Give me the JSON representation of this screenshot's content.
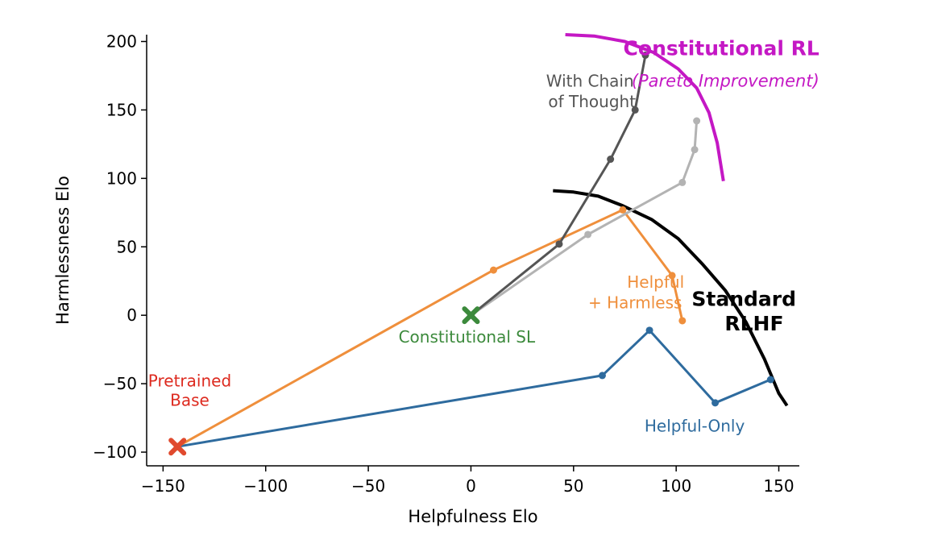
{
  "chart_data": {
    "type": "line",
    "title": "",
    "xlabel": "Helpfulness Elo",
    "ylabel": "Harmlessness Elo",
    "xlim": [
      -158,
      160
    ],
    "ylim": [
      -110,
      205
    ],
    "xticks": [
      -150,
      -100,
      -50,
      0,
      50,
      100,
      150
    ],
    "yticks": [
      -100,
      -50,
      0,
      50,
      100,
      150,
      200
    ],
    "xtick_labels": [
      "−150",
      "−100",
      "−50",
      "0",
      "50",
      "100",
      "150"
    ],
    "ytick_labels": [
      "−100",
      "−50",
      "0",
      "50",
      "100",
      "150",
      "200"
    ],
    "grid": false,
    "series": [
      {
        "name": "Helpful-Only",
        "color": "#2e6b9e",
        "points": [
          [
            -143,
            -96
          ],
          [
            64,
            -44
          ],
          [
            87,
            -11
          ],
          [
            119,
            -64
          ],
          [
            146,
            -47
          ]
        ]
      },
      {
        "name": "Helpful + Harmless",
        "color": "#ef8f3c",
        "points": [
          [
            -143,
            -96
          ],
          [
            11,
            33
          ],
          [
            74,
            77
          ],
          [
            98,
            29
          ],
          [
            103,
            -4
          ]
        ]
      },
      {
        "name": "",
        "color": "#b3b3b3",
        "points": [
          [
            0,
            0
          ],
          [
            57,
            59
          ],
          [
            103,
            97
          ],
          [
            109,
            121
          ],
          [
            110,
            142
          ]
        ]
      },
      {
        "name": "With Chain of Thought",
        "color": "#555555",
        "points": [
          [
            0,
            0
          ],
          [
            43,
            52
          ],
          [
            68,
            114
          ],
          [
            80,
            150
          ],
          [
            85,
            190
          ]
        ]
      }
    ],
    "markers": [
      {
        "name": "Pretrained Base",
        "x": -143,
        "y": -96,
        "shape": "x",
        "color": "#e04a2e"
      },
      {
        "name": "Constitutional SL",
        "x": 0,
        "y": 0,
        "shape": "x",
        "color": "#3c8a3c"
      }
    ],
    "curves": [
      {
        "name": "Standard RLHF",
        "color": "#000000",
        "points": [
          [
            40,
            91
          ],
          [
            50,
            90
          ],
          [
            62,
            87
          ],
          [
            74,
            80
          ],
          [
            88,
            70
          ],
          [
            101,
            56
          ],
          [
            113,
            37
          ],
          [
            124,
            18
          ],
          [
            134,
            -5
          ],
          [
            143,
            -32
          ],
          [
            150,
            -57
          ],
          [
            154,
            -66
          ]
        ]
      },
      {
        "name": "Constitutional RL",
        "color": "#c418c4",
        "points": [
          [
            46,
            205
          ],
          [
            60,
            204
          ],
          [
            75,
            200
          ],
          [
            89,
            192
          ],
          [
            101,
            180
          ],
          [
            110,
            166
          ],
          [
            116,
            148
          ],
          [
            120,
            126
          ],
          [
            123,
            98
          ]
        ]
      }
    ],
    "annotations": [
      {
        "text": "Pretrained",
        "x": -137,
        "y": -52,
        "color": "#dd2a1f",
        "style": "normal"
      },
      {
        "text": "Base",
        "x": -137,
        "y": -66,
        "color": "#dd2a1f",
        "style": "normal"
      },
      {
        "text": "Constitutional SL",
        "x": -2,
        "y": -20,
        "color": "#3c8a3c",
        "style": "normal"
      },
      {
        "text": "Helpful",
        "x": 90,
        "y": 20,
        "color": "#ef8f3c",
        "style": "normal"
      },
      {
        "text": "+ Harmless",
        "x": 80,
        "y": 5,
        "color": "#ef8f3c",
        "style": "normal"
      },
      {
        "text": "Helpful-Only",
        "x": 109,
        "y": -85,
        "color": "#2e6b9e",
        "style": "normal"
      },
      {
        "text": "With Chain",
        "x": 58,
        "y": 167,
        "color": "#555555",
        "style": "normal"
      },
      {
        "text": "of Thought",
        "x": 59,
        "y": 152,
        "color": "#555555",
        "style": "normal"
      },
      {
        "text": "Standard",
        "x": 133,
        "y": 7,
        "color": "#000000",
        "style": "bold"
      },
      {
        "text": "RLHF",
        "x": 138,
        "y": -11,
        "color": "#000000",
        "style": "bold"
      },
      {
        "text": "Constitutional RL",
        "x": 122,
        "y": 190,
        "color": "#c418c4",
        "style": "bold"
      },
      {
        "text": "(Pareto Improvement)",
        "x": 124,
        "y": 167,
        "color": "#c418c4",
        "style": "italic"
      }
    ]
  }
}
